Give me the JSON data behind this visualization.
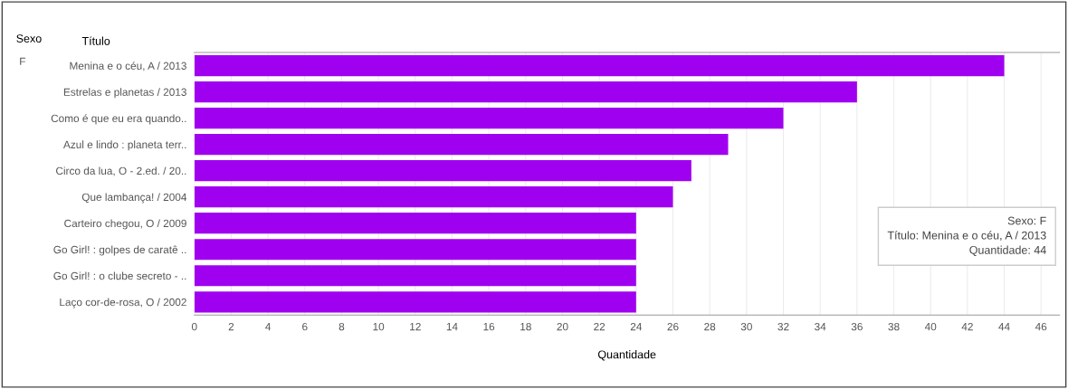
{
  "chart_data": {
    "type": "bar",
    "orientation": "horizontal",
    "xlabel": "Quantidade",
    "ylabel": "Título",
    "categories": [
      "Menina e o céu, A / 2013",
      "Estrelas e planetas / 2013",
      "Como é que eu era quando..",
      "Azul e lindo : planeta terr..",
      "Circo da lua, O - 2.ed. / 20..",
      "Que lambança! / 2004",
      "Carteiro chegou, O / 2009",
      "Go Girl! : golpes de caratê ..",
      "Go Girl! : o clube secreto - ..",
      "Laço cor-de-rosa, O / 2002"
    ],
    "values": [
      44,
      36,
      32,
      29,
      27,
      26,
      24,
      24,
      24,
      24
    ],
    "color": "#a000f0",
    "xlim": [
      0,
      47
    ],
    "xticks": [
      0,
      2,
      4,
      6,
      8,
      10,
      12,
      14,
      16,
      18,
      20,
      22,
      24,
      26,
      28,
      30,
      32,
      34,
      36,
      38,
      40,
      42,
      44,
      46
    ],
    "grid": "x",
    "annotations": [
      "Sexo",
      "F",
      "Sexo: F\nTítulo: Menina e o céu, A / 2013\nQuantidade: 44"
    ]
  }
}
